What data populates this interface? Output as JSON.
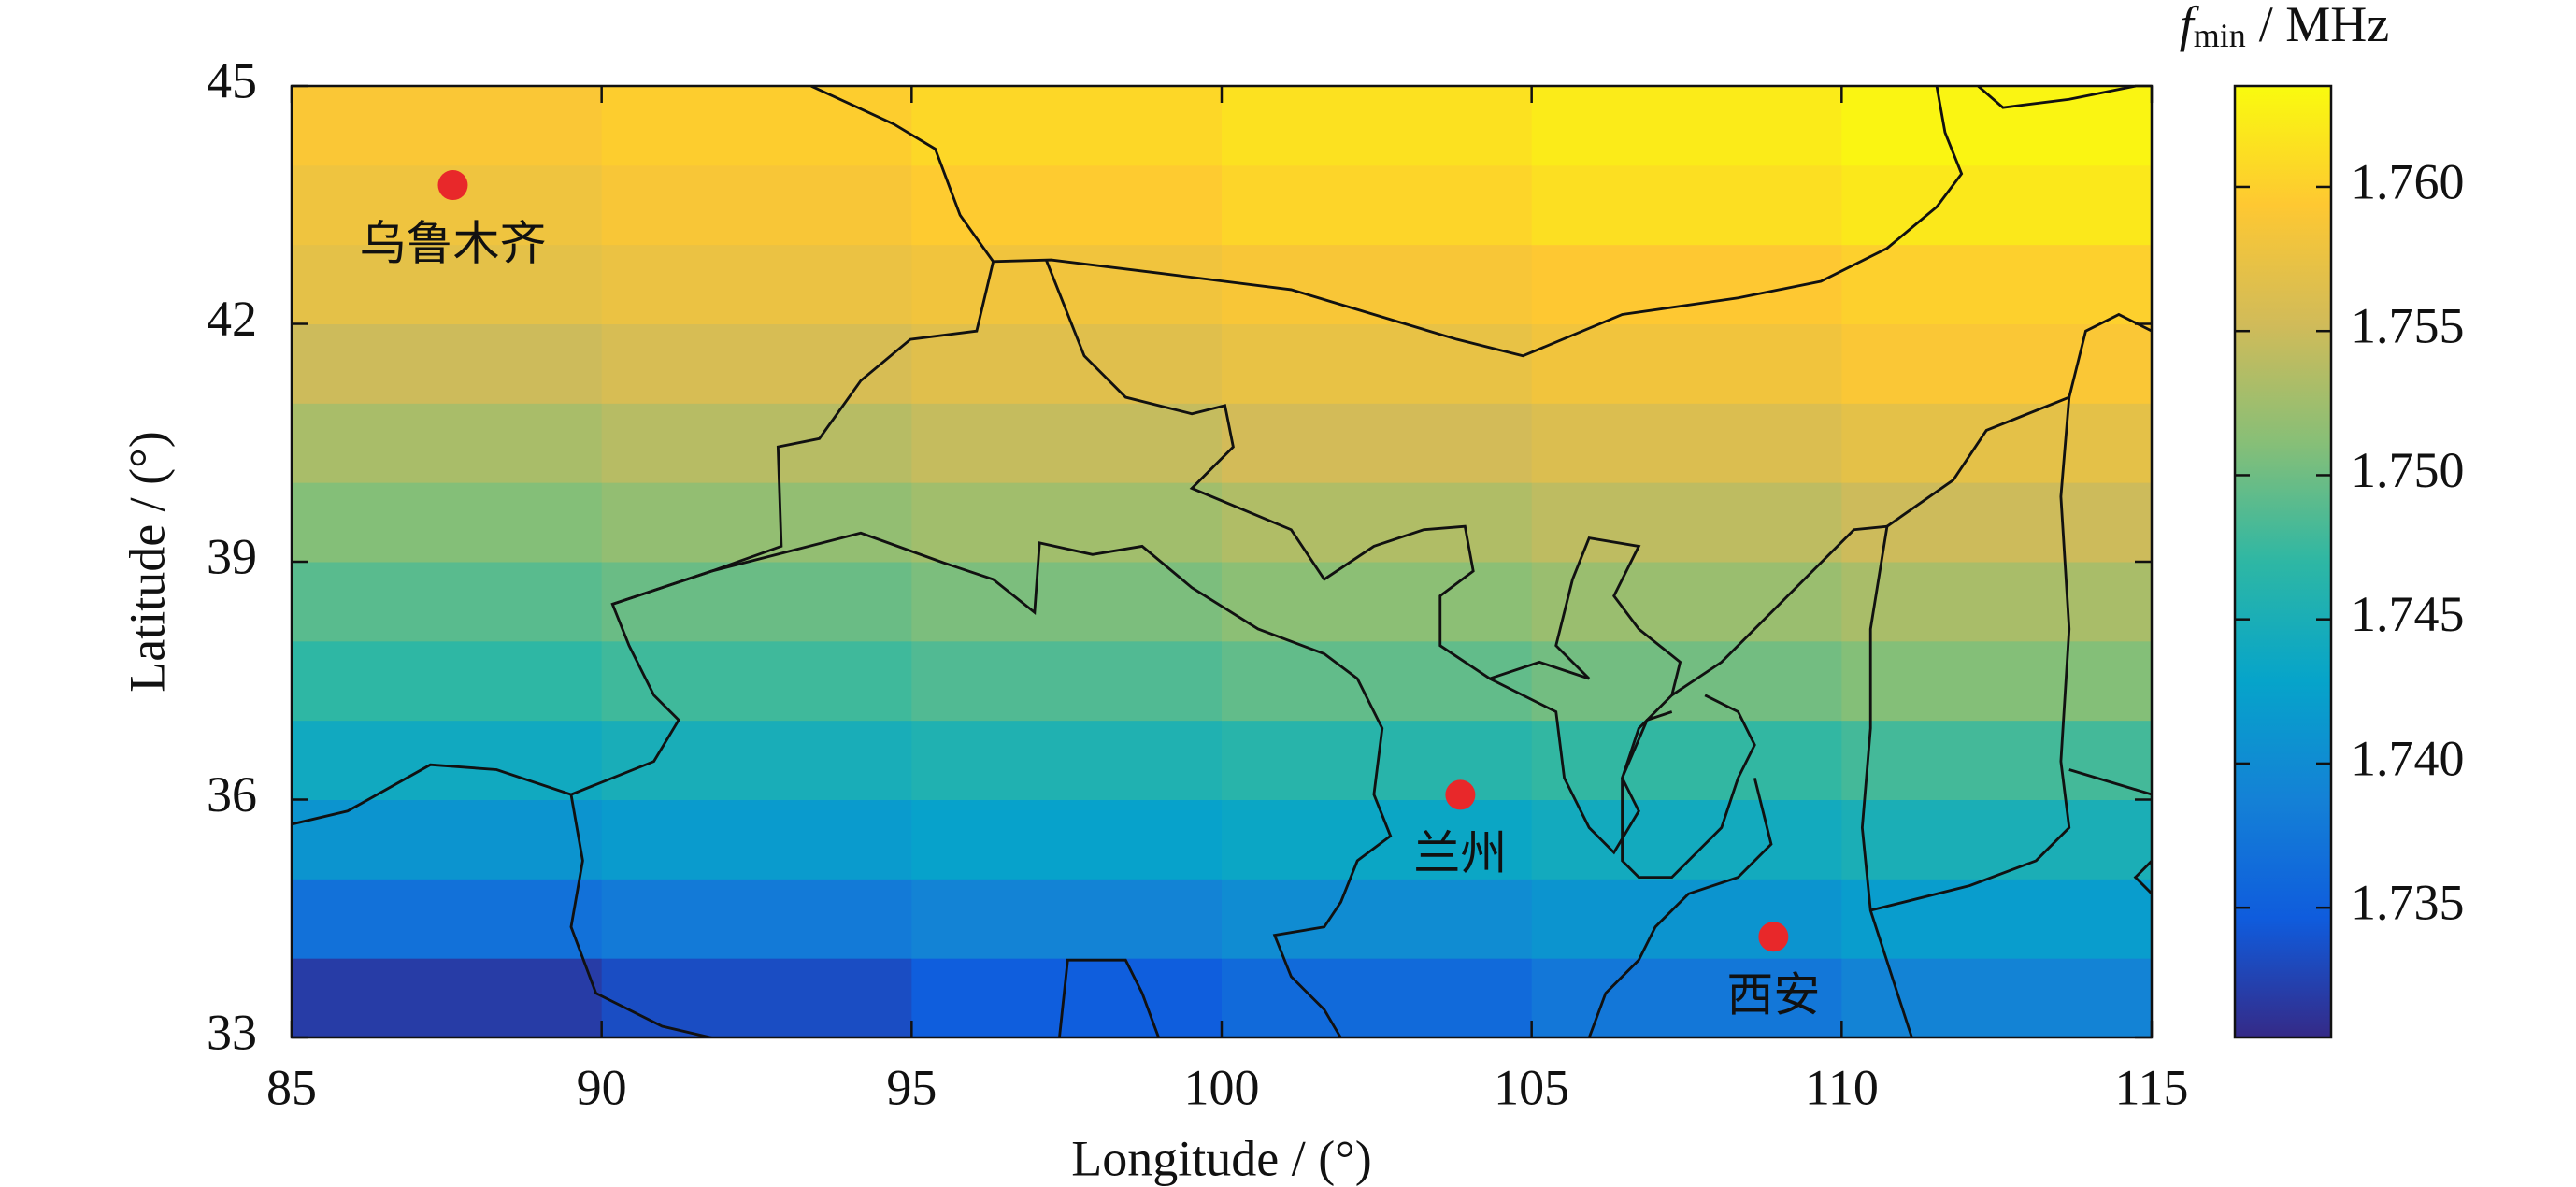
{
  "chart_data": {
    "type": "heatmap",
    "xlabel": "Longitude / (°)",
    "ylabel": "Latitude / (°)",
    "xlim": [
      85,
      115
    ],
    "ylim": [
      33,
      45
    ],
    "xticks": [
      85,
      90,
      95,
      100,
      105,
      110,
      115
    ],
    "yticks": [
      33,
      36,
      39,
      42,
      45
    ],
    "x_edges": [
      85,
      90,
      95,
      100,
      105,
      110,
      115
    ],
    "y_edges": [
      33,
      34,
      35,
      36,
      37,
      38,
      39,
      40,
      41,
      42,
      43,
      44,
      45
    ],
    "values": [
      [
        1.732,
        1.7334,
        1.7348,
        1.7362,
        1.7376,
        1.739
      ],
      [
        1.737,
        1.738,
        1.739,
        1.74,
        1.741,
        1.742
      ],
      [
        1.741,
        1.7418,
        1.7426,
        1.7434,
        1.7442,
        1.745
      ],
      [
        1.744,
        1.7448,
        1.7456,
        1.7464,
        1.7472,
        1.748
      ],
      [
        1.747,
        1.7478,
        1.7486,
        1.7494,
        1.7502,
        1.751
      ],
      [
        1.749,
        1.7498,
        1.7506,
        1.7514,
        1.7522,
        1.753
      ],
      [
        1.751,
        1.7518,
        1.7526,
        1.7534,
        1.7542,
        1.755
      ],
      [
        1.753,
        1.7538,
        1.7546,
        1.7554,
        1.7562,
        1.757
      ],
      [
        1.755,
        1.7558,
        1.7566,
        1.7574,
        1.7582,
        1.759
      ],
      [
        1.757,
        1.7576,
        1.7582,
        1.7588,
        1.7594,
        1.76
      ],
      [
        1.758,
        1.7588,
        1.7596,
        1.7604,
        1.7612,
        1.762
      ],
      [
        1.759,
        1.7598,
        1.7606,
        1.7614,
        1.7622,
        1.763
      ]
    ],
    "colormap": [
      "#352a87",
      "#0f5cdd",
      "#1481d6",
      "#06a4ca",
      "#2eb7a4",
      "#87bf77",
      "#d1bb59",
      "#fec832",
      "#f9fb0e"
    ],
    "colorbar": {
      "symbol": "f",
      "subscript": "min",
      "unit": "/ MHz",
      "clim": [
        1.7305,
        1.7635
      ],
      "ticks": [
        1.735,
        {
          "value": 1.74,
          "label": "1.740"
        },
        1.745,
        {
          "value": 1.75,
          "label": "1.750"
        },
        1.755,
        {
          "value": 1.76,
          "label": "1.760"
        }
      ]
    },
    "city_color": "#e8282a",
    "cities": [
      {
        "name": "乌鲁木齐",
        "x": 87.6,
        "y": 43.75
      },
      {
        "name": "兰州",
        "x": 103.85,
        "y": 36.06
      },
      {
        "name": "西安",
        "x": 108.9,
        "y": 34.27
      }
    ]
  }
}
